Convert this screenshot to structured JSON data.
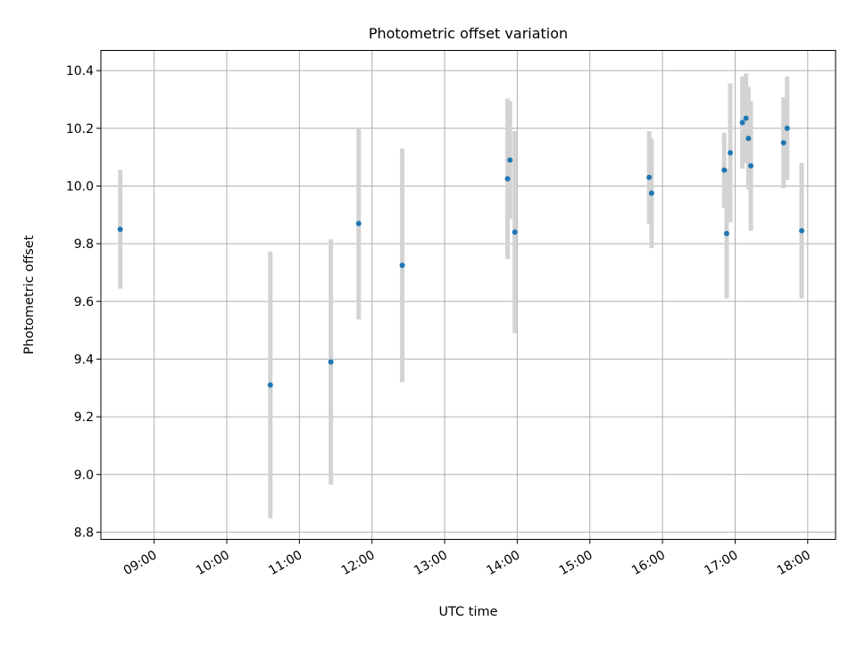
{
  "chart_data": {
    "type": "scatter",
    "title": "Photometric offset variation",
    "xlabel": "UTC time",
    "ylabel": "Photometric offset",
    "xlim": [
      "08:16",
      "18:23"
    ],
    "ylim": [
      8.775,
      10.47
    ],
    "xticks": [
      "09:00",
      "10:00",
      "11:00",
      "12:00",
      "13:00",
      "14:00",
      "15:00",
      "16:00",
      "17:00",
      "18:00"
    ],
    "yticks": [
      8.8,
      9.0,
      9.2,
      9.4,
      9.6,
      9.8,
      10.0,
      10.2,
      10.4
    ],
    "ytick_labels": [
      "8.8",
      "9.0",
      "9.2",
      "9.4",
      "9.6",
      "9.8",
      "10.0",
      "10.2",
      "10.4"
    ],
    "grid": true,
    "colors": {
      "point": "#1f77b4",
      "errorbar": "#d3d3d3",
      "grid": "#b0b0b0"
    },
    "points": [
      {
        "x": "08:32",
        "y": 9.85,
        "yerr": 0.206
      },
      {
        "x": "10:36",
        "y": 9.31,
        "yerr": 0.462
      },
      {
        "x": "11:26",
        "y": 9.39,
        "yerr": 0.425
      },
      {
        "x": "11:49",
        "y": 9.87,
        "yerr": 0.333
      },
      {
        "x": "12:25",
        "y": 9.725,
        "yerr": 0.405
      },
      {
        "x": "13:52",
        "y": 10.025,
        "yerr": 0.278
      },
      {
        "x": "13:54",
        "y": 10.09,
        "yerr": 0.205
      },
      {
        "x": "13:58",
        "y": 9.84,
        "yerr": 0.35
      },
      {
        "x": "15:49",
        "y": 10.03,
        "yerr": 0.16
      },
      {
        "x": "15:51",
        "y": 9.975,
        "yerr": 0.19
      },
      {
        "x": "16:51",
        "y": 10.055,
        "yerr": 0.13
      },
      {
        "x": "16:53",
        "y": 9.835,
        "yerr": 0.225
      },
      {
        "x": "16:56",
        "y": 10.115,
        "yerr": 0.24
      },
      {
        "x": "17:06",
        "y": 10.22,
        "yerr": 0.16
      },
      {
        "x": "17:09",
        "y": 10.235,
        "yerr": 0.155
      },
      {
        "x": "17:11",
        "y": 10.165,
        "yerr": 0.178
      },
      {
        "x": "17:13",
        "y": 10.07,
        "yerr": 0.225
      },
      {
        "x": "17:40",
        "y": 10.15,
        "yerr": 0.158
      },
      {
        "x": "17:43",
        "y": 10.2,
        "yerr": 0.18
      },
      {
        "x": "17:55",
        "y": 9.845,
        "yerr": 0.235
      }
    ]
  }
}
